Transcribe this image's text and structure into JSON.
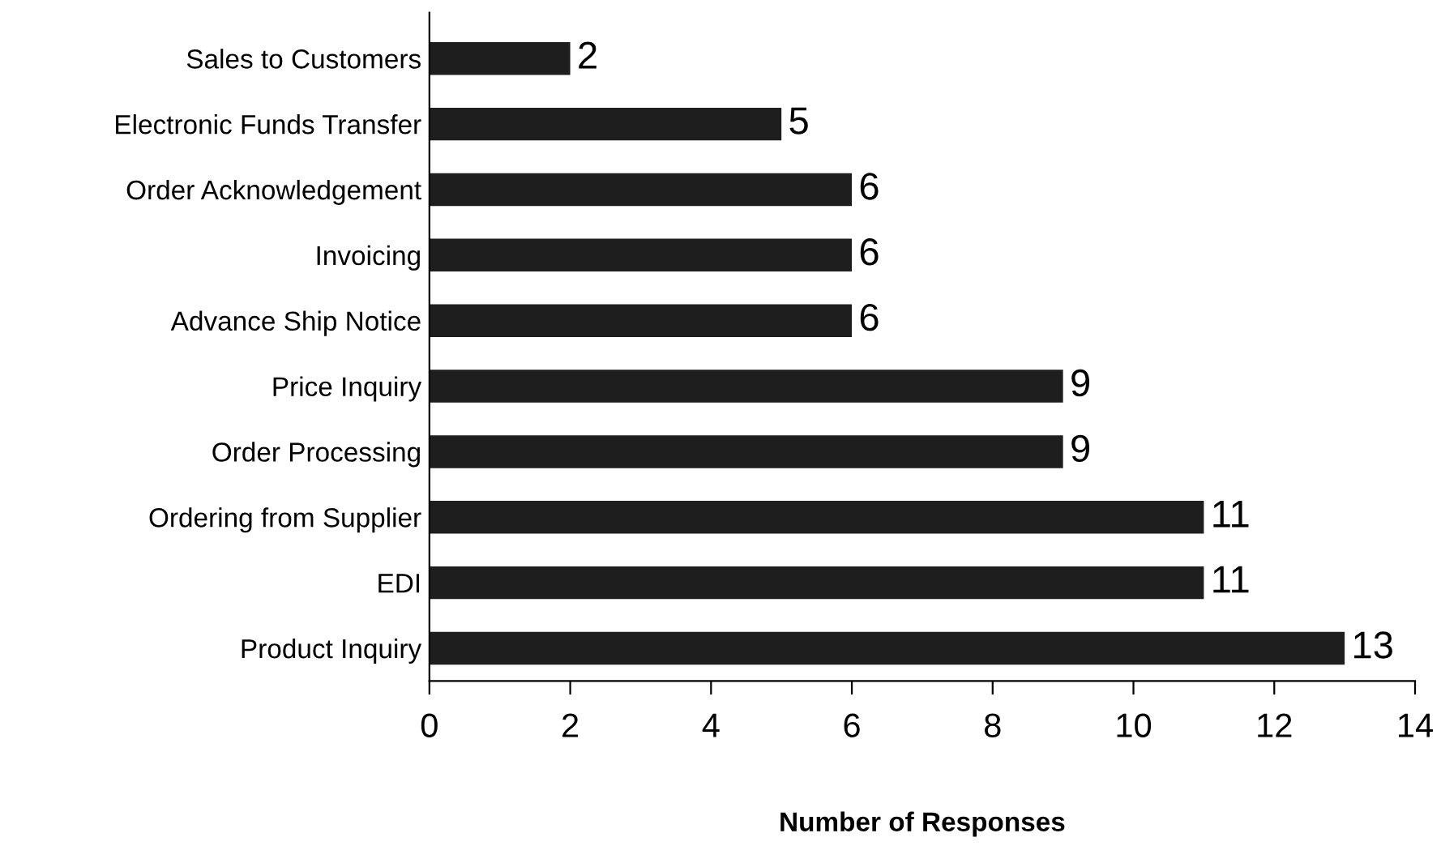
{
  "chart_data": {
    "type": "bar",
    "orientation": "horizontal",
    "xlabel": "Number of Responses",
    "categories": [
      "Sales to Customers",
      "Electronic Funds Transfer",
      "Order Acknowledgement",
      "Invoicing",
      "Advance Ship Notice",
      "Price Inquiry",
      "Order Processing",
      "Ordering from Supplier",
      "EDI",
      "Product Inquiry"
    ],
    "values": [
      2,
      5,
      6,
      6,
      6,
      9,
      9,
      11,
      11,
      13
    ],
    "color": "#1e1e1e",
    "xlim": [
      0,
      14
    ],
    "xticks": [
      0,
      2,
      4,
      6,
      8,
      10,
      12,
      14
    ],
    "grid": false,
    "data_labels": true
  }
}
